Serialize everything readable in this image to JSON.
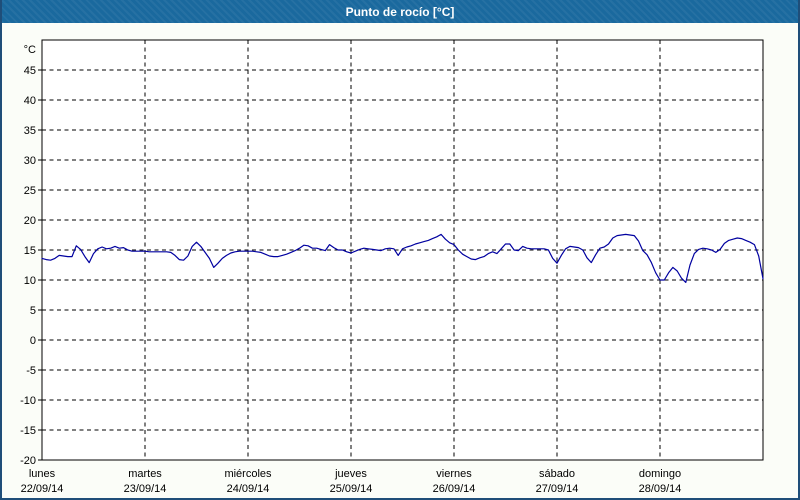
{
  "window": {
    "title": "Punto de rocío [°C]"
  },
  "colors": {
    "titlebar_bg": "#1a699e",
    "titlebar_text": "#ffffff",
    "frame_border": "#1f4e79",
    "canvas_bg": "#fbfdf8",
    "plot_bg": "#ffffff",
    "axis": "#000000",
    "grid": "#000000",
    "series_line": "#0000a0"
  },
  "chart_data": {
    "type": "line",
    "title": "Punto de rocío [°C]",
    "y_unit_label": "°C",
    "ylim": [
      -20,
      50
    ],
    "y_tick_step": 5,
    "y_tick_values": [
      45,
      40,
      35,
      30,
      25,
      20,
      15,
      10,
      5,
      0,
      -5,
      -10,
      -15,
      -20
    ],
    "grid": "dashed",
    "legend": "none",
    "x_days": [
      {
        "name": "lunes",
        "date": "22/09/14"
      },
      {
        "name": "martes",
        "date": "23/09/14"
      },
      {
        "name": "miércoles",
        "date": "24/09/14"
      },
      {
        "name": "jueves",
        "date": "25/09/14"
      },
      {
        "name": "viernes",
        "date": "26/09/14"
      },
      {
        "name": "sábado",
        "date": "27/09/14"
      },
      {
        "name": "domingo",
        "date": "28/09/14"
      }
    ],
    "series": [
      {
        "name": "Punto de rocío",
        "color": "#0000a0",
        "x_unit": "hours_from_start",
        "x_step_hours": 1,
        "values_hourly": [
          13.6,
          13.4,
          13.3,
          13.6,
          14.1,
          14.0,
          13.9,
          13.9,
          15.7,
          15.1,
          13.9,
          12.9,
          14.4,
          15.2,
          15.5,
          15.2,
          15.3,
          15.6,
          15.3,
          15.4,
          15.0,
          14.8,
          14.8,
          14.8,
          14.8,
          14.7,
          14.7,
          14.7,
          14.7,
          14.7,
          14.6,
          14.1,
          13.4,
          13.3,
          14.0,
          15.6,
          16.3,
          15.6,
          14.6,
          13.6,
          12.1,
          12.8,
          13.6,
          14.1,
          14.5,
          14.7,
          14.8,
          14.8,
          14.8,
          14.8,
          14.7,
          14.6,
          14.3,
          14.0,
          13.9,
          13.9,
          14.1,
          14.3,
          14.6,
          14.9,
          15.3,
          15.8,
          15.7,
          15.3,
          15.3,
          15.1,
          14.9,
          15.9,
          15.4,
          15.0,
          15.0,
          14.7,
          14.5,
          14.8,
          15.1,
          15.3,
          15.2,
          15.1,
          15.0,
          14.9,
          15.2,
          15.3,
          15.2,
          14.1,
          15.2,
          15.5,
          15.7,
          16.0,
          16.2,
          16.4,
          16.6,
          16.9,
          17.2,
          17.6,
          16.8,
          16.2,
          15.9,
          15.0,
          14.3,
          13.9,
          13.5,
          13.4,
          13.7,
          13.9,
          14.4,
          14.7,
          14.4,
          15.2,
          16.0,
          16.0,
          15.0,
          14.9,
          15.6,
          15.3,
          15.2,
          15.2,
          15.2,
          15.2,
          15.0,
          13.6,
          12.8,
          14.1,
          15.2,
          15.6,
          15.5,
          15.4,
          15.0,
          13.7,
          12.9,
          14.2,
          15.3,
          15.5,
          16.0,
          17.0,
          17.4,
          17.5,
          17.6,
          17.5,
          17.4,
          16.5,
          14.9,
          14.2,
          12.9,
          11.2,
          10.0,
          10.0,
          11.2,
          12.1,
          11.5,
          10.3,
          9.6,
          12.5,
          14.4,
          15.1,
          15.3,
          15.2,
          15.0,
          14.6,
          15.1,
          16.1,
          16.6,
          16.8,
          17.0,
          16.9,
          16.6,
          16.3,
          15.9,
          14.0,
          10.2
        ]
      }
    ]
  }
}
